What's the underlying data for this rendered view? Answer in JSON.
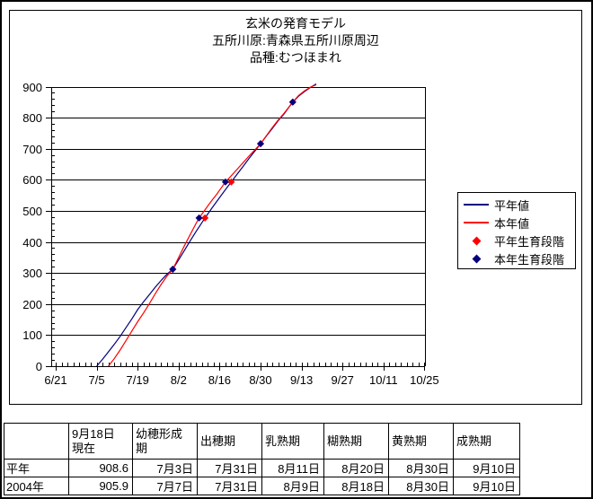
{
  "chart_data": {
    "type": "line",
    "title_lines": [
      "玄米の発育モデル",
      "五所川原:青森県五所川原周辺",
      "品種:むつほまれ"
    ],
    "x_axis": {
      "tick_labels": [
        "6/21",
        "7/5",
        "7/19",
        "8/2",
        "8/16",
        "8/30",
        "9/13",
        "9/27",
        "10/11",
        "10/25"
      ],
      "days_per_major_tick": 14,
      "minor_tick_step_days": 2
    },
    "y_axis": {
      "min": 0,
      "max": 900,
      "major_step": 100,
      "minor_step": 20
    },
    "grid": "horizontal-only",
    "legend_position": "right",
    "series": [
      {
        "name": "平年値",
        "color": "#000080",
        "style": "line",
        "points": [
          [
            14,
            0
          ],
          [
            16,
            22
          ],
          [
            18,
            46
          ],
          [
            20,
            70
          ],
          [
            22,
            96
          ],
          [
            24,
            124
          ],
          [
            26,
            152
          ],
          [
            28,
            182
          ],
          [
            30,
            207
          ],
          [
            32,
            230
          ],
          [
            34,
            254
          ],
          [
            36,
            276
          ],
          [
            38,
            296
          ],
          [
            40,
            312
          ],
          [
            42,
            342
          ],
          [
            44,
            373
          ],
          [
            46,
            404
          ],
          [
            48,
            434
          ],
          [
            50,
            463
          ],
          [
            51,
            477
          ],
          [
            53,
            504
          ],
          [
            55,
            530
          ],
          [
            57,
            556
          ],
          [
            59,
            581
          ],
          [
            60,
            593
          ],
          [
            62,
            618
          ],
          [
            64,
            643
          ],
          [
            66,
            668
          ],
          [
            68,
            692
          ],
          [
            70,
            716
          ],
          [
            72,
            741
          ],
          [
            74,
            765
          ],
          [
            76,
            790
          ],
          [
            78,
            812
          ],
          [
            80,
            838
          ],
          [
            81,
            850
          ],
          [
            83,
            869
          ],
          [
            85,
            884
          ],
          [
            87,
            897
          ],
          [
            89,
            908.6
          ]
        ]
      },
      {
        "name": "本年値",
        "color": "#ff0000",
        "style": "line",
        "points": [
          [
            18,
            0
          ],
          [
            20,
            24
          ],
          [
            22,
            52
          ],
          [
            24,
            82
          ],
          [
            26,
            113
          ],
          [
            28,
            143
          ],
          [
            30,
            171
          ],
          [
            32,
            201
          ],
          [
            34,
            233
          ],
          [
            36,
            263
          ],
          [
            38,
            290
          ],
          [
            40,
            312
          ],
          [
            42,
            350
          ],
          [
            44,
            388
          ],
          [
            46,
            424
          ],
          [
            48,
            460
          ],
          [
            49,
            477
          ],
          [
            51,
            503
          ],
          [
            53,
            529
          ],
          [
            55,
            553
          ],
          [
            57,
            580
          ],
          [
            58,
            593
          ],
          [
            60,
            613
          ],
          [
            62,
            634
          ],
          [
            64,
            655
          ],
          [
            66,
            676
          ],
          [
            68,
            696
          ],
          [
            70,
            716
          ],
          [
            72,
            742
          ],
          [
            74,
            768
          ],
          [
            76,
            792
          ],
          [
            78,
            814
          ],
          [
            80,
            838
          ],
          [
            81,
            850
          ],
          [
            83,
            871
          ],
          [
            85,
            886
          ],
          [
            87,
            898
          ],
          [
            89,
            905.9
          ]
        ]
      }
    ],
    "stage_markers": [
      {
        "name": "平年生育段階",
        "color": "#ff0000",
        "stages": [
          {
            "stage": "出穂期",
            "date": "7月31日",
            "day": 40,
            "value": 312
          },
          {
            "stage": "乳熟期",
            "date": "8月11日",
            "day": 51,
            "value": 477
          },
          {
            "stage": "糊熟期",
            "date": "8月20日",
            "day": 60,
            "value": 593
          },
          {
            "stage": "黄熟期",
            "date": "8月30日",
            "day": 70,
            "value": 716
          },
          {
            "stage": "成熟期",
            "date": "9月10日",
            "day": 81,
            "value": 850
          }
        ]
      },
      {
        "name": "本年生育段階",
        "color": "#000080",
        "stages": [
          {
            "stage": "出穂期",
            "date": "7月31日",
            "day": 40,
            "value": 312
          },
          {
            "stage": "乳熟期",
            "date": "8月9日",
            "day": 49,
            "value": 477
          },
          {
            "stage": "糊熟期",
            "date": "8月18日",
            "day": 58,
            "value": 593
          },
          {
            "stage": "黄熟期",
            "date": "8月30日",
            "day": 70,
            "value": 716
          },
          {
            "stage": "成熟期",
            "date": "9月10日",
            "day": 81,
            "value": 850
          }
        ]
      }
    ]
  },
  "table": {
    "headers": [
      "",
      "9月18日\n現在",
      "幼穂形成\n期",
      "出穂期",
      "乳熟期",
      "糊熟期",
      "黄熟期",
      "成熟期"
    ],
    "rows": [
      {
        "label": "平年",
        "values": [
          "908.6",
          "7月3日",
          "7月31日",
          "8月11日",
          "8月20日",
          "8月30日",
          "9月10日"
        ]
      },
      {
        "label": "2004年",
        "values": [
          "905.9",
          "7月7日",
          "7月31日",
          "8月9日",
          "8月18日",
          "8月30日",
          "9月10日"
        ]
      }
    ]
  }
}
